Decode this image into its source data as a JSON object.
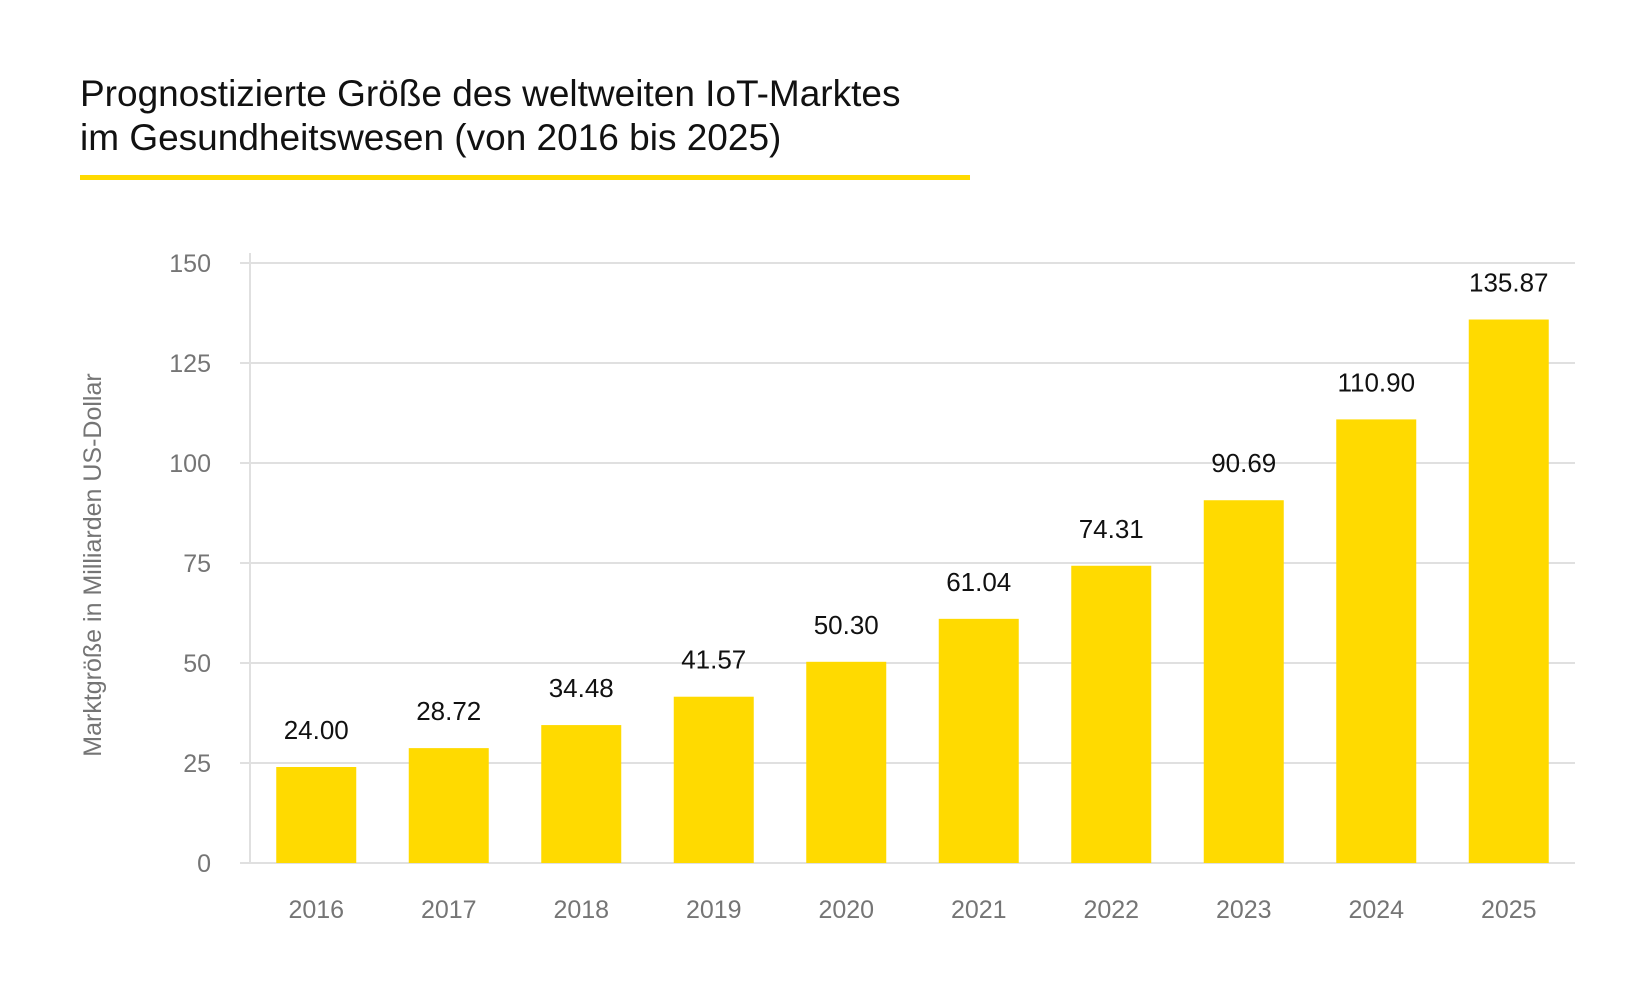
{
  "chart_data": {
    "type": "bar",
    "title": [
      "Prognostizierte Größe des weltweiten IoT-Marktes",
      "im Gesundheitswesen (von 2016 bis 2025)"
    ],
    "xlabel": "",
    "ylabel": "Marktgröße in Milliarden US-Dollar",
    "categories": [
      "2016",
      "2017",
      "2018",
      "2019",
      "2020",
      "2021",
      "2022",
      "2023",
      "2024",
      "2025"
    ],
    "values": [
      24.0,
      28.72,
      34.48,
      41.57,
      50.3,
      61.04,
      74.31,
      90.69,
      110.9,
      135.87
    ],
    "data_labels": [
      "24.00",
      "28.72",
      "34.48",
      "41.57",
      "50.30",
      "61.04",
      "74.31",
      "90.69",
      "110.90",
      "135.87"
    ],
    "ylim": [
      0,
      150
    ],
    "yticks": [
      0,
      25,
      50,
      75,
      100,
      125,
      150
    ],
    "grid": true,
    "legend": "none",
    "colors": {
      "bar": "#FFDA00",
      "accent": "#FFDA00",
      "grid": "#E0E0E0",
      "tick": "#757575"
    }
  }
}
